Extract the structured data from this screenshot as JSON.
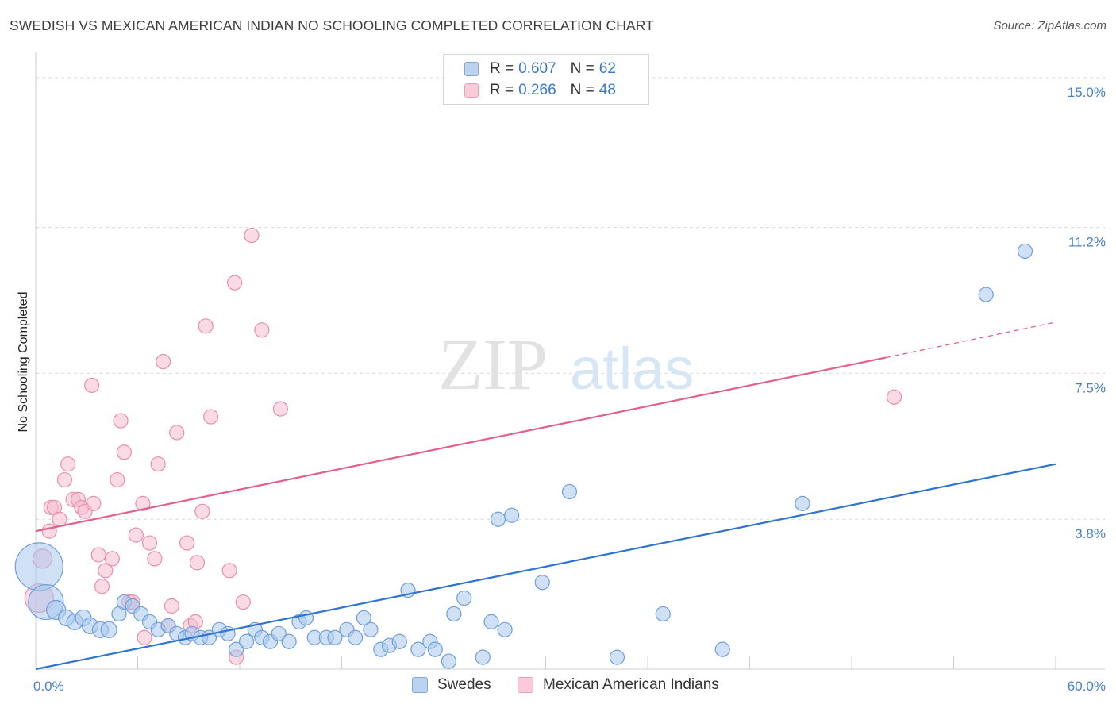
{
  "title": "SWEDISH VS MEXICAN AMERICAN INDIAN NO SCHOOLING COMPLETED CORRELATION CHART",
  "source": "Source: ZipAtlas.com",
  "watermark": {
    "zip": "ZIP",
    "atlas": "atlas"
  },
  "legend": {
    "rows": [
      {
        "r_label": "R =",
        "r_value": "0.607",
        "n_label": "N =",
        "n_value": "62"
      },
      {
        "r_label": "R =",
        "r_value": "0.266",
        "n_label": "N =",
        "n_value": "48"
      }
    ]
  },
  "colors": {
    "blue_fill": "#a9c8ee",
    "blue_stroke": "#6f9fd8",
    "blue_line": "#2f74d0",
    "pink_fill": "#f6bccd",
    "pink_stroke": "#e88fab",
    "pink_line": "#e2608a",
    "grid": "#d9d9d9",
    "axis_text": "#4a80c8"
  },
  "chart_data": {
    "type": "scatter",
    "title": "SWEDISH VS MEXICAN AMERICAN INDIAN NO SCHOOLING COMPLETED CORRELATION CHART",
    "xlabel": "",
    "ylabel": "No Schooling Completed",
    "xlim": [
      0,
      60
    ],
    "ylim": [
      0,
      15.4
    ],
    "x_tick_labels": [
      {
        "value": 0,
        "label": "0.0%"
      },
      {
        "value": 60,
        "label": "60.0%"
      }
    ],
    "y_tick_labels": [
      {
        "value": 3.8,
        "label": "3.8%"
      },
      {
        "value": 7.5,
        "label": "7.5%"
      },
      {
        "value": 11.2,
        "label": "11.2%"
      },
      {
        "value": 15.0,
        "label": "15.0%"
      }
    ],
    "grid": true,
    "legend_position": "top-center",
    "series": [
      {
        "name": "Swedes",
        "color": "#a9c8ee",
        "trend": {
          "x0": 0,
          "y0": 0.0,
          "x1": 60,
          "y1": 5.2
        },
        "points": [
          [
            0.2,
            2.6,
            30
          ],
          [
            0.6,
            1.7,
            22
          ],
          [
            1.2,
            1.5,
            12
          ],
          [
            1.8,
            1.3,
            10
          ],
          [
            2.3,
            1.2,
            10
          ],
          [
            2.8,
            1.3,
            10
          ],
          [
            3.2,
            1.1,
            10
          ],
          [
            3.8,
            1.0,
            10
          ],
          [
            4.3,
            1.0,
            10
          ],
          [
            4.9,
            1.4,
            9
          ],
          [
            5.2,
            1.7,
            9
          ],
          [
            5.7,
            1.6,
            9
          ],
          [
            6.2,
            1.4,
            9
          ],
          [
            6.7,
            1.2,
            9
          ],
          [
            7.2,
            1.0,
            9
          ],
          [
            7.8,
            1.1,
            9
          ],
          [
            8.3,
            0.9,
            9
          ],
          [
            8.8,
            0.8,
            9
          ],
          [
            9.2,
            0.9,
            9
          ],
          [
            9.7,
            0.8,
            9
          ],
          [
            10.2,
            0.8,
            9
          ],
          [
            10.8,
            1.0,
            9
          ],
          [
            11.3,
            0.9,
            9
          ],
          [
            11.8,
            0.5,
            9
          ],
          [
            12.4,
            0.7,
            9
          ],
          [
            12.9,
            1.0,
            9
          ],
          [
            13.3,
            0.8,
            9
          ],
          [
            13.8,
            0.7,
            9
          ],
          [
            14.3,
            0.9,
            9
          ],
          [
            14.9,
            0.7,
            9
          ],
          [
            15.5,
            1.2,
            9
          ],
          [
            15.9,
            1.3,
            9
          ],
          [
            16.4,
            0.8,
            9
          ],
          [
            17.1,
            0.8,
            9
          ],
          [
            17.6,
            0.8,
            9
          ],
          [
            18.3,
            1.0,
            9
          ],
          [
            18.8,
            0.8,
            9
          ],
          [
            19.3,
            1.3,
            9
          ],
          [
            19.7,
            1.0,
            9
          ],
          [
            20.3,
            0.5,
            9
          ],
          [
            20.8,
            0.6,
            9
          ],
          [
            21.4,
            0.7,
            9
          ],
          [
            21.9,
            2.0,
            9
          ],
          [
            22.5,
            0.5,
            9
          ],
          [
            23.2,
            0.7,
            9
          ],
          [
            23.5,
            0.5,
            9
          ],
          [
            24.3,
            0.2,
            9
          ],
          [
            24.6,
            1.4,
            9
          ],
          [
            25.2,
            1.8,
            9
          ],
          [
            26.3,
            0.3,
            9
          ],
          [
            26.8,
            1.2,
            9
          ],
          [
            27.2,
            3.8,
            9
          ],
          [
            27.6,
            1.0,
            9
          ],
          [
            28.0,
            3.9,
            9
          ],
          [
            29.8,
            2.2,
            9
          ],
          [
            31.4,
            4.5,
            9
          ],
          [
            34.2,
            0.3,
            9
          ],
          [
            36.9,
            1.4,
            9
          ],
          [
            40.4,
            0.5,
            9
          ],
          [
            45.1,
            4.2,
            9
          ],
          [
            55.9,
            9.5,
            9
          ],
          [
            58.2,
            10.6,
            9
          ]
        ]
      },
      {
        "name": "Mexican American Indians",
        "color": "#f6bccd",
        "trend": {
          "x0": 0,
          "y0": 3.5,
          "x1": 50,
          "y1": 7.9,
          "dash_x1": 60,
          "dash_y1": 8.8
        },
        "points": [
          [
            0.2,
            1.8,
            18
          ],
          [
            0.4,
            2.8,
            12
          ],
          [
            0.8,
            3.5,
            9
          ],
          [
            0.9,
            4.1,
            9
          ],
          [
            1.1,
            4.1,
            9
          ],
          [
            1.4,
            3.8,
            9
          ],
          [
            1.7,
            4.8,
            9
          ],
          [
            1.9,
            5.2,
            9
          ],
          [
            2.2,
            4.3,
            9
          ],
          [
            2.5,
            4.3,
            9
          ],
          [
            2.7,
            4.1,
            9
          ],
          [
            2.9,
            4.0,
            9
          ],
          [
            3.3,
            7.2,
            9
          ],
          [
            3.4,
            4.2,
            9
          ],
          [
            3.7,
            2.9,
            9
          ],
          [
            3.9,
            2.1,
            9
          ],
          [
            4.1,
            2.5,
            9
          ],
          [
            4.5,
            2.8,
            9
          ],
          [
            4.8,
            4.8,
            9
          ],
          [
            5.0,
            6.3,
            9
          ],
          [
            5.2,
            5.5,
            9
          ],
          [
            5.5,
            1.7,
            9
          ],
          [
            5.7,
            1.7,
            9
          ],
          [
            5.9,
            3.4,
            9
          ],
          [
            6.3,
            4.2,
            9
          ],
          [
            6.4,
            0.8,
            9
          ],
          [
            6.7,
            3.2,
            9
          ],
          [
            7.0,
            2.8,
            9
          ],
          [
            7.2,
            5.2,
            9
          ],
          [
            7.5,
            7.8,
            9
          ],
          [
            7.8,
            1.1,
            9
          ],
          [
            8.0,
            1.6,
            9
          ],
          [
            8.3,
            6.0,
            9
          ],
          [
            8.9,
            3.2,
            9
          ],
          [
            9.1,
            1.1,
            9
          ],
          [
            9.4,
            1.2,
            9
          ],
          [
            9.5,
            2.7,
            9
          ],
          [
            9.8,
            4.0,
            9
          ],
          [
            10.0,
            8.7,
            9
          ],
          [
            10.3,
            6.4,
            9
          ],
          [
            11.4,
            2.5,
            9
          ],
          [
            11.7,
            9.8,
            9
          ],
          [
            11.8,
            0.3,
            9
          ],
          [
            12.2,
            1.7,
            9
          ],
          [
            12.7,
            11.0,
            9
          ],
          [
            13.3,
            8.6,
            9
          ],
          [
            14.4,
            6.6,
            9
          ],
          [
            50.5,
            6.9,
            9
          ]
        ]
      }
    ]
  }
}
